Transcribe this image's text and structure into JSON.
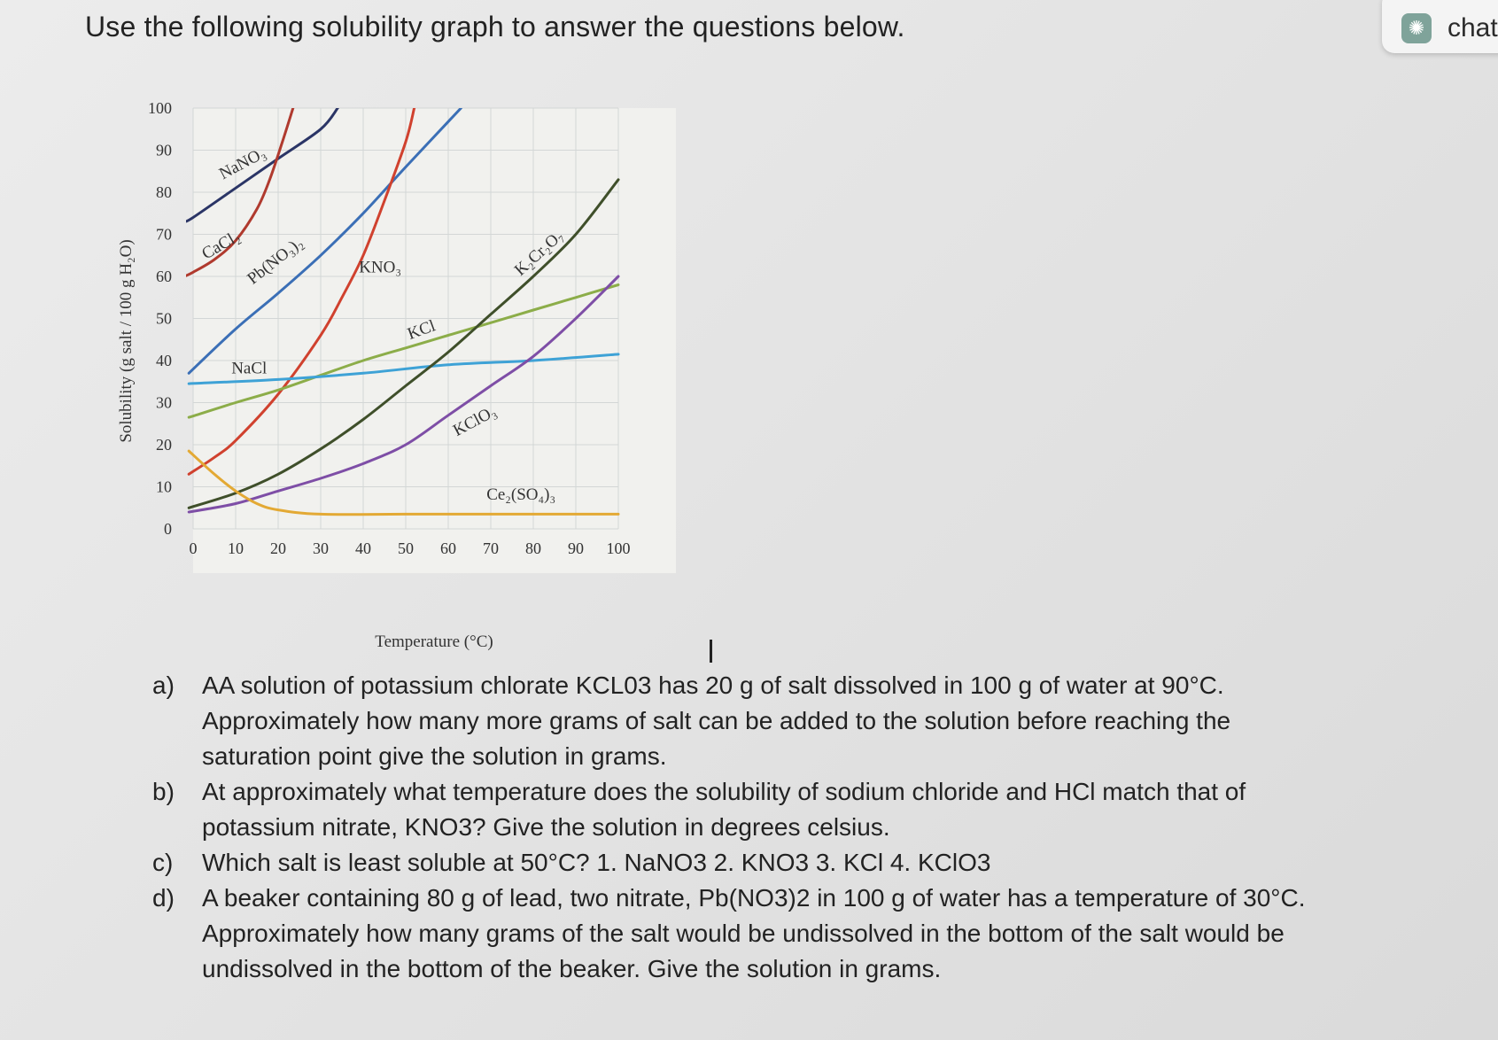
{
  "heading": "Use the following solubility graph to answer the questions below.",
  "chat_widget": {
    "label": "chat",
    "icon": "openai-logo-icon",
    "icon_color": "#7fa39a"
  },
  "chart_data": {
    "type": "line",
    "xlabel": "Temperature (°C)",
    "ylabel": "Solubility (g salt / 100 g H₂O)",
    "xlim": [
      0,
      100
    ],
    "ylim": [
      0,
      100
    ],
    "x_ticks": [
      "0",
      "10",
      "20",
      "30",
      "40",
      "50",
      "60",
      "70",
      "80",
      "90",
      "100"
    ],
    "y_ticks": [
      "0",
      "10",
      "20",
      "30",
      "40",
      "50",
      "60",
      "70",
      "80",
      "90",
      "100"
    ],
    "grid": true,
    "series": [
      {
        "name": "NaNO₃",
        "color": "#2b3566",
        "points": [
          [
            -2,
            73
          ],
          [
            0,
            74
          ],
          [
            10,
            81
          ],
          [
            20,
            88
          ],
          [
            30,
            95
          ],
          [
            34,
            100
          ]
        ],
        "label_at": [
          7,
          83,
          -28
        ]
      },
      {
        "name": "CaCl₂",
        "color": "#b03a2e",
        "points": [
          [
            -2,
            60
          ],
          [
            0,
            61
          ],
          [
            5,
            64
          ],
          [
            10,
            68.5
          ],
          [
            15,
            76
          ],
          [
            18,
            83
          ],
          [
            21,
            92
          ],
          [
            23.5,
            100
          ]
        ],
        "label_at": [
          3,
          64,
          -30
        ]
      },
      {
        "name": "Pb(NO₃)₂",
        "color": "#3b6fb6",
        "points": [
          [
            -1,
            37
          ],
          [
            10,
            47.5
          ],
          [
            20,
            56
          ],
          [
            30,
            65
          ],
          [
            40,
            75
          ],
          [
            50,
            86
          ],
          [
            63,
            100
          ]
        ],
        "label_at": [
          14,
          58,
          -38
        ]
      },
      {
        "name": "KNO₃",
        "color": "#d0412e",
        "points": [
          [
            -1,
            13
          ],
          [
            5,
            17
          ],
          [
            10,
            21
          ],
          [
            20,
            32
          ],
          [
            30,
            46
          ],
          [
            35,
            55
          ],
          [
            40,
            65
          ],
          [
            45,
            78
          ],
          [
            50,
            92
          ],
          [
            52,
            100
          ]
        ],
        "label_at": [
          39,
          61,
          0
        ]
      },
      {
        "name": "KCl",
        "color": "#8cad49",
        "points": [
          [
            -1,
            26.5
          ],
          [
            10,
            30
          ],
          [
            20,
            33
          ],
          [
            30,
            36.5
          ],
          [
            40,
            40
          ],
          [
            50,
            43
          ],
          [
            60,
            46
          ],
          [
            70,
            49
          ],
          [
            80,
            52
          ],
          [
            90,
            55
          ],
          [
            100,
            58
          ]
        ],
        "label_at": [
          51,
          45,
          -20
        ]
      },
      {
        "name": "NaCl",
        "color": "#3ea2d6",
        "points": [
          [
            -1,
            34.5
          ],
          [
            20,
            35.5
          ],
          [
            40,
            37
          ],
          [
            60,
            39
          ],
          [
            80,
            40
          ],
          [
            100,
            41.5
          ]
        ],
        "label_at": [
          9,
          37,
          0
        ]
      },
      {
        "name": "K₂Cr₂O₇",
        "color": "#3f4f2a",
        "points": [
          [
            -1,
            5
          ],
          [
            10,
            8.5
          ],
          [
            20,
            13
          ],
          [
            30,
            19
          ],
          [
            40,
            26
          ],
          [
            50,
            34
          ],
          [
            60,
            42
          ],
          [
            70,
            51
          ],
          [
            80,
            60
          ],
          [
            90,
            70
          ],
          [
            100,
            83
          ]
        ],
        "label_at": [
          77,
          60,
          -42
        ]
      },
      {
        "name": "KClO₃",
        "color": "#7e4ea6",
        "points": [
          [
            -1,
            4
          ],
          [
            10,
            6
          ],
          [
            20,
            9
          ],
          [
            30,
            12
          ],
          [
            40,
            15.5
          ],
          [
            50,
            20
          ],
          [
            60,
            27
          ],
          [
            70,
            34
          ],
          [
            80,
            41
          ],
          [
            90,
            50
          ],
          [
            100,
            60
          ]
        ],
        "label_at": [
          62,
          22,
          -28
        ]
      },
      {
        "name": "Ce₂(SO₄)₃",
        "color": "#e3a934",
        "points": [
          [
            -1,
            18.5
          ],
          [
            5,
            13
          ],
          [
            10,
            9
          ],
          [
            15,
            6
          ],
          [
            20,
            4.5
          ],
          [
            30,
            3.5
          ],
          [
            50,
            3.5
          ],
          [
            70,
            3.5
          ],
          [
            100,
            3.5
          ]
        ],
        "label_at": [
          69,
          7,
          0
        ]
      }
    ]
  },
  "questions": [
    {
      "letter": "a)",
      "text": "AA solution of potassium chlorate KCL03 has 20 g of salt dissolved in 100 g of water at 90°C. Approximately how many more grams of salt can be added to the solution before reaching the saturation point give the solution in grams."
    },
    {
      "letter": "b)",
      "text": "At approximately what temperature does the solubility of sodium chloride and HCl match that of potassium nitrate, KNO3? Give the solution in degrees celsius."
    },
    {
      "letter": "c)",
      "text": "Which salt is least soluble at 50°C? 1. NaNO3 2. KNO3 3. KCl 4. KClO3"
    },
    {
      "letter": "d)",
      "text": "A beaker containing 80 g of lead, two nitrate, Pb(NO3)2 in 100 g of water has a temperature of 30°C. Approximately how many grams of the salt would be undissolved in the bottom of the salt would be undissolved in the bottom of the beaker. Give the solution in grams."
    }
  ]
}
